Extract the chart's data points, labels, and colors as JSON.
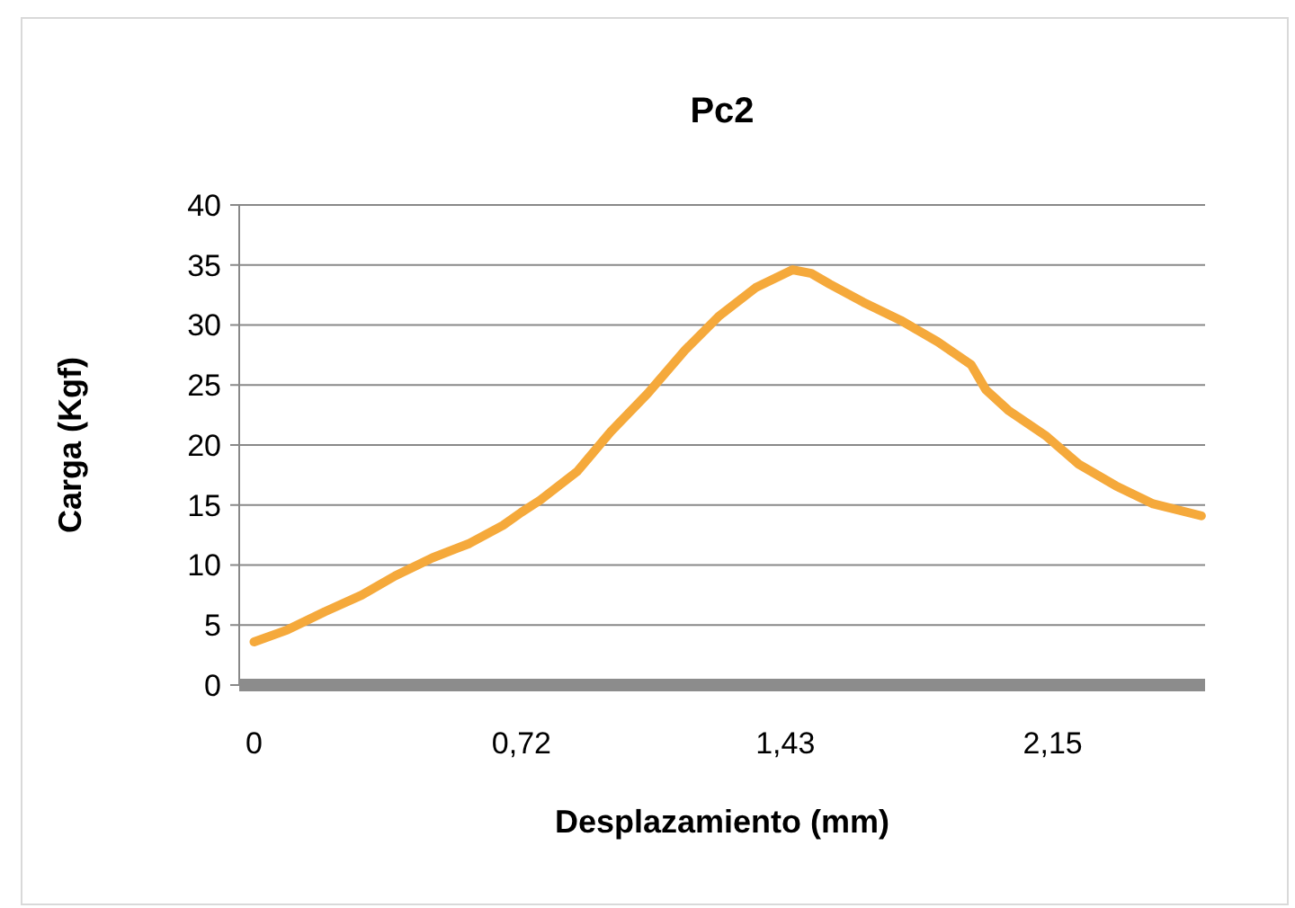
{
  "chart_data": {
    "type": "line",
    "title": "Pc2",
    "xlabel": "Desplazamiento (mm)",
    "ylabel": "Carga (Kgf)",
    "xlim": [
      -0.04,
      2.56
    ],
    "xticks": [
      0,
      {
        "value": 0.72,
        "label": "0,72"
      },
      {
        "value": 1.43,
        "label": "1,43"
      },
      {
        "value": 2.15,
        "label": "2,15"
      }
    ],
    "ylim": [
      0,
      40
    ],
    "yticks": [
      0,
      5,
      10,
      15,
      20,
      25,
      30,
      35,
      40
    ],
    "grid": "y",
    "marker": "none",
    "line_style": "solid",
    "series": [
      {
        "color": "#f5a93b",
        "x": [
          0,
          0.09,
          0.19,
          0.29,
          0.38,
          0.48,
          0.58,
          0.67,
          0.72,
          0.77,
          0.87,
          0.96,
          1.06,
          1.16,
          1.25,
          1.35,
          1.45,
          1.5,
          1.55,
          1.64,
          1.74,
          1.84,
          1.93,
          1.97,
          2.03,
          2.13,
          2.22,
          2.32,
          2.42,
          2.55
        ],
        "values": [
          3.6,
          4.6,
          6.1,
          7.5,
          9.1,
          10.6,
          11.8,
          13.3,
          14.4,
          15.4,
          17.8,
          21.1,
          24.3,
          27.9,
          30.7,
          33.1,
          34.6,
          34.3,
          33.4,
          31.9,
          30.4,
          28.6,
          26.7,
          24.6,
          22.9,
          20.8,
          18.4,
          16.6,
          15.1,
          14.1
        ]
      }
    ]
  }
}
